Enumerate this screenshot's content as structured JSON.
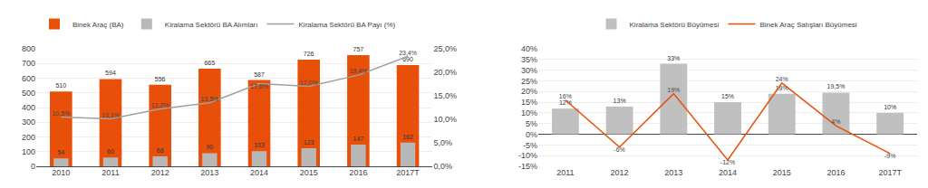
{
  "chart_data": [
    {
      "type": "bar",
      "categories": [
        "2010",
        "2011",
        "2012",
        "2013",
        "2014",
        "2015",
        "2016",
        "2017T"
      ],
      "series": [
        {
          "name": "Binek Araç (BA)",
          "color": "#E8500A",
          "values": [
            510,
            594,
            556,
            665,
            587,
            726,
            757,
            690
          ]
        },
        {
          "name": "Kiralama Sektörü BA Alımları",
          "color": "#B8B8B8",
          "values": [
            54,
            60,
            68,
            90,
            103,
            123,
            147,
            162
          ]
        },
        {
          "name": "Kiralama Sektörü BA Payı (%)",
          "type": "line",
          "color": "#A0A0A0",
          "axis": "y2",
          "values": [
            10.5,
            10.1,
            12.2,
            13.5,
            17.6,
            17.0,
            19.4,
            23.4
          ],
          "value_labels": [
            "10,5%",
            "10,1%",
            "12,2%",
            "13,5%",
            "17,6%",
            "17,0%",
            "19,4%",
            "23,4%"
          ]
        }
      ],
      "ylim": [
        0,
        800
      ],
      "yticks": [
        0,
        100,
        200,
        300,
        400,
        500,
        600,
        700,
        800
      ],
      "y2lim": [
        0.0,
        25.0
      ],
      "y2ticks": [
        {
          "value": 0.0,
          "label": "0,0%"
        },
        {
          "value": 5.0,
          "label": "5,0%"
        },
        {
          "value": 10.0,
          "label": "10,0%"
        },
        {
          "value": 15.0,
          "label": "15,0%"
        },
        {
          "value": 20.0,
          "label": "20,0%"
        },
        {
          "value": 25.0,
          "label": "25,0%"
        }
      ],
      "grid": true,
      "legend": "upper left",
      "data_labels": true
    },
    {
      "type": "bar",
      "categories": [
        "2011",
        "2012",
        "2013",
        "2014",
        "2015",
        "2016",
        "2017T"
      ],
      "series": [
        {
          "name": "Kiralama Sektörü Büyümesi",
          "color": "#C0C0C0",
          "values": [
            12,
            13,
            33,
            15,
            19,
            19.5,
            10
          ],
          "value_labels": [
            "12%",
            "13%",
            "33%",
            "15%",
            "19%",
            "19,5%",
            "10%"
          ]
        },
        {
          "name": "Binek Araç Satışları Büyümesi",
          "type": "line",
          "color": "#E8500A",
          "values": [
            16,
            -6,
            19,
            -12,
            24,
            4,
            -9
          ],
          "value_labels": [
            "16%",
            "-6%",
            "19%",
            "-12%",
            "24%",
            "4%",
            "-9%"
          ]
        }
      ],
      "ylim": [
        -15,
        40
      ],
      "yticks": [
        {
          "value": -15,
          "label": "-15%"
        },
        {
          "value": -10,
          "label": "-10%"
        },
        {
          "value": -5,
          "label": "-5%"
        },
        {
          "value": 0,
          "label": "0%"
        },
        {
          "value": 5,
          "label": "5%"
        },
        {
          "value": 10,
          "label": "10%"
        },
        {
          "value": 15,
          "label": "15%"
        },
        {
          "value": 20,
          "label": "20%"
        },
        {
          "value": 25,
          "label": "25%"
        },
        {
          "value": 30,
          "label": "30%"
        },
        {
          "value": 35,
          "label": "35%"
        },
        {
          "value": 40,
          "label": "40%"
        }
      ],
      "grid": true,
      "legend": "upper center",
      "data_labels": true
    }
  ]
}
